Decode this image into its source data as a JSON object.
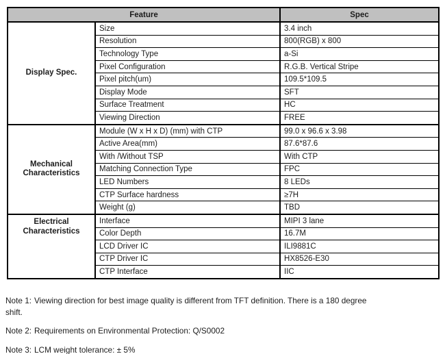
{
  "colors": {
    "header_bg": "#c0c0c0",
    "border": "#000000",
    "text": "#1c1c1c"
  },
  "table": {
    "header": {
      "feature": "Feature",
      "spec": "Spec"
    },
    "sections": [
      {
        "group": "Display Spec.",
        "rows": [
          {
            "feature": "Size",
            "spec": "3.4 inch"
          },
          {
            "feature": "Resolution",
            "spec": "800(RGB) x 800"
          },
          {
            "feature": "Technology Type",
            "spec": "a-Si"
          },
          {
            "feature": "Pixel Configuration",
            "spec": "R.G.B. Vertical Stripe"
          },
          {
            "feature": "Pixel pitch(um)",
            "spec": "109.5*109.5"
          },
          {
            "feature": "Display Mode",
            "spec": "SFT"
          },
          {
            "feature": "Surface Treatment",
            "spec": "HC"
          },
          {
            "feature": "Viewing Direction",
            "spec": "FREE"
          }
        ]
      },
      {
        "group": "Mechanical Characteristics",
        "rows": [
          {
            "feature": "Module (W x H x D) (mm) with CTP",
            "spec": "99.0 x 96.6 x 3.98"
          },
          {
            "feature": "Active Area(mm)",
            "spec": "87.6*87.6"
          },
          {
            "feature": "With /Without TSP",
            "spec": "With CTP"
          },
          {
            "feature": "Matching Connection Type",
            "spec": "FPC"
          },
          {
            "feature": "LED Numbers",
            "spec": "8 LEDs"
          },
          {
            "feature": "CTP Surface hardness",
            "spec": "≥7H"
          },
          {
            "feature": "Weight (g)",
            "spec": "TBD"
          }
        ]
      },
      {
        "group": "Electrical Characteristics",
        "rows": [
          {
            "feature": "Interface",
            "spec": "MIPI 3 lane"
          },
          {
            "feature": "Color Depth",
            "spec": "16.7M"
          },
          {
            "feature": "LCD Driver IC",
            "spec": "ILI9881C"
          },
          {
            "feature": "CTP Driver IC",
            "spec": "HX8526-E30"
          },
          {
            "feature": "CTP Interface",
            "spec": "IIC"
          }
        ]
      }
    ]
  },
  "notes": [
    {
      "label": "Note 1:",
      "lines": [
        "Viewing direction for best image quality is different from TFT definition. There is a 180 degree",
        "shift."
      ]
    },
    {
      "label": "Note 2:",
      "lines": [
        "Requirements on Environmental Protection: Q/S0002"
      ]
    },
    {
      "label": "Note 3:",
      "lines": [
        "LCM weight tolerance: ± 5%"
      ]
    }
  ]
}
